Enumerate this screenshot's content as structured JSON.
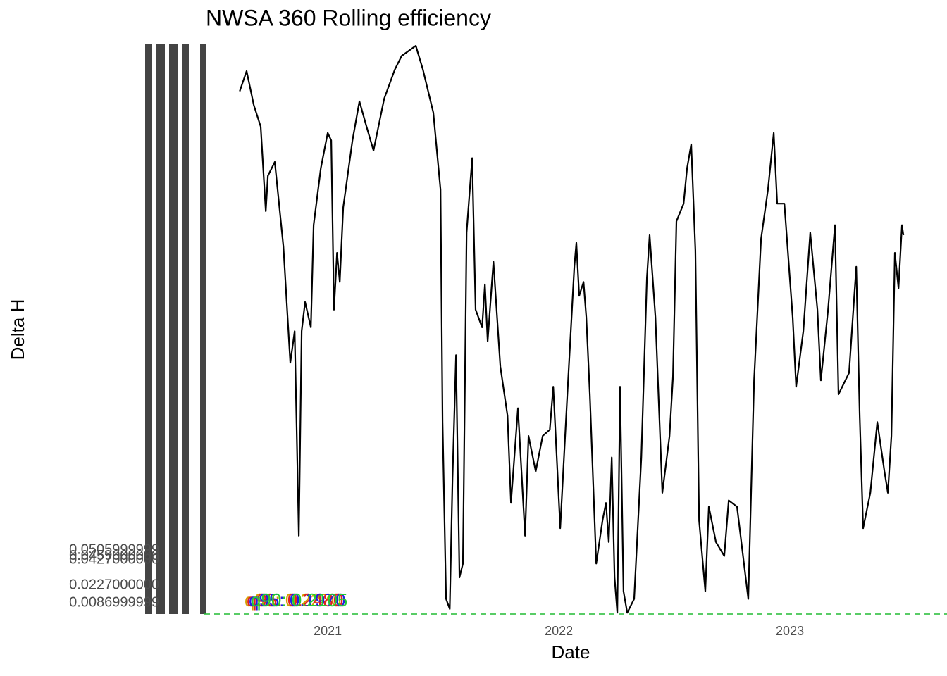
{
  "chart_data": {
    "type": "line",
    "title": "NWSA 360 Rolling efficiency",
    "x_label": "Date",
    "y_label": "Delta H",
    "xlim": [
      2020.466,
      2023.637
    ],
    "xticks": [
      2021,
      2022,
      2023
    ],
    "ylim": [
      0,
      0.45
    ],
    "yticks": [
      {
        "value": 0.0087,
        "label": "0.0086999999"
      },
      {
        "value": 0.0227,
        "label": "0.0227000000"
      },
      {
        "value": 0.0427,
        "label": "0.0427000000"
      },
      {
        "value": 0.0459,
        "label": "0.0459000000"
      },
      {
        "value": 0.0506,
        "label": "0.0505999999"
      }
    ],
    "grid": false,
    "hline": {
      "value": 0,
      "color": "#22bb33"
    },
    "annotations": [
      {
        "text": "q90: 0.2270",
        "color": "#d4a000"
      },
      {
        "text": "q95: 0.2480",
        "color": "#e02020"
      },
      {
        "text": "q95: 0.1970",
        "color": "#2020e0"
      },
      {
        "text": "q90: 0.2105",
        "color": "#22cc33"
      }
    ],
    "series": [
      {
        "name": "Delta H",
        "color": "#000000",
        "x": [
          2020.619,
          2020.649,
          2020.68,
          2020.71,
          2020.732,
          2020.741,
          2020.771,
          2020.808,
          2020.838,
          2020.857,
          2020.875,
          2020.887,
          2020.902,
          2020.927,
          2020.939,
          2020.97,
          2021.0,
          2021.015,
          2021.027,
          2021.04,
          2021.052,
          2021.067,
          2021.107,
          2021.137,
          2021.168,
          2021.198,
          2021.244,
          2021.29,
          2021.32,
          2021.381,
          2021.412,
          2021.457,
          2021.488,
          2021.497,
          2021.512,
          2021.528,
          2021.54,
          2021.555,
          2021.57,
          2021.585,
          2021.601,
          2021.625,
          2021.64,
          2021.668,
          2021.68,
          2021.692,
          2021.717,
          2021.747,
          2021.778,
          2021.793,
          2021.823,
          2021.854,
          2021.869,
          2021.9,
          2021.93,
          2021.961,
          2021.976,
          2022.006,
          2022.037,
          2022.067,
          2022.076,
          2022.088,
          2022.107,
          2022.119,
          2022.134,
          2022.162,
          2022.189,
          2022.204,
          2022.216,
          2022.229,
          2022.241,
          2022.253,
          2022.265,
          2022.28,
          2022.296,
          2022.326,
          2022.357,
          2022.381,
          2022.393,
          2022.418,
          2022.448,
          2022.479,
          2022.494,
          2022.509,
          2022.54,
          2022.555,
          2022.573,
          2022.591,
          2022.607,
          2022.634,
          2022.649,
          2022.68,
          2022.716,
          2022.735,
          2022.771,
          2022.82,
          2022.845,
          2022.875,
          2022.905,
          2022.93,
          2022.945,
          2022.976,
          2023.012,
          2023.027,
          2023.058,
          2023.088,
          2023.119,
          2023.134,
          2023.165,
          2023.195,
          2023.21,
          2023.256,
          2023.287,
          2023.302,
          2023.317,
          2023.348,
          2023.378,
          2023.409,
          2023.424,
          2023.439,
          2023.454,
          2023.47,
          2023.485,
          2023.491
        ],
        "values": [
          0.414,
          0.43,
          0.403,
          0.386,
          0.319,
          0.347,
          0.358,
          0.291,
          0.199,
          0.224,
          0.062,
          0.224,
          0.247,
          0.227,
          0.308,
          0.353,
          0.381,
          0.375,
          0.241,
          0.286,
          0.263,
          0.322,
          0.375,
          0.406,
          0.386,
          0.367,
          0.408,
          0.431,
          0.442,
          0.45,
          0.431,
          0.397,
          0.336,
          0.152,
          0.012,
          0.004,
          0.107,
          0.205,
          0.029,
          0.04,
          0.302,
          0.361,
          0.241,
          0.227,
          0.261,
          0.216,
          0.279,
          0.196,
          0.157,
          0.088,
          0.163,
          0.062,
          0.141,
          0.113,
          0.141,
          0.146,
          0.18,
          0.068,
          0.174,
          0.275,
          0.294,
          0.252,
          0.263,
          0.235,
          0.174,
          0.04,
          0.074,
          0.088,
          0.057,
          0.124,
          0.029,
          0.001,
          0.18,
          0.018,
          0.001,
          0.012,
          0.124,
          0.266,
          0.3,
          0.235,
          0.096,
          0.141,
          0.188,
          0.311,
          0.325,
          0.353,
          0.372,
          0.288,
          0.074,
          0.018,
          0.085,
          0.057,
          0.046,
          0.09,
          0.085,
          0.012,
          0.185,
          0.297,
          0.336,
          0.381,
          0.325,
          0.325,
          0.235,
          0.18,
          0.224,
          0.302,
          0.241,
          0.185,
          0.241,
          0.308,
          0.174,
          0.191,
          0.275,
          0.157,
          0.068,
          0.096,
          0.152,
          0.113,
          0.096,
          0.141,
          0.286,
          0.258,
          0.308,
          0.3
        ]
      }
    ]
  }
}
